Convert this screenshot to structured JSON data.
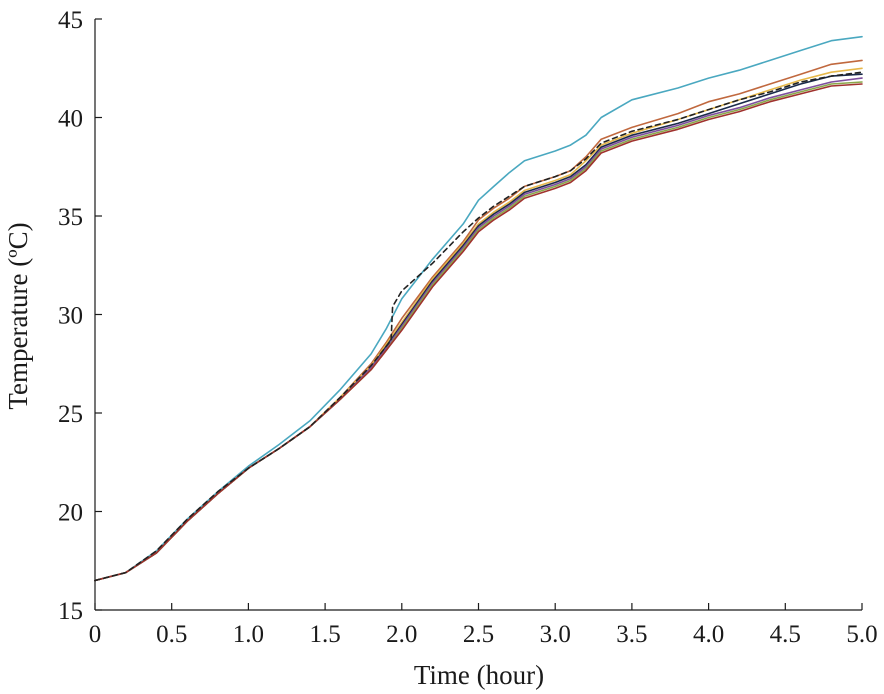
{
  "chart_data": {
    "type": "line",
    "title": "",
    "xlabel": "Time (hour)",
    "ylabel": "Temperature (ºC)",
    "xlim": [
      0,
      5
    ],
    "ylim": [
      15,
      45
    ],
    "xticks": [
      "0",
      "0.5",
      "1.0",
      "1.5",
      "2.0",
      "2.5",
      "3.0",
      "3.5",
      "4.0",
      "4.5",
      "5.0"
    ],
    "yticks": [
      "15",
      "20",
      "25",
      "30",
      "35",
      "40",
      "45"
    ],
    "grid": false,
    "legend": "none",
    "series": [
      {
        "color": "#4aa8c0",
        "style": "solid",
        "x": [
          0,
          0.2,
          0.4,
          0.6,
          0.8,
          1.0,
          1.2,
          1.4,
          1.6,
          1.8,
          1.9,
          2.0,
          2.2,
          2.4,
          2.5,
          2.6,
          2.7,
          2.8,
          3.0,
          3.1,
          3.2,
          3.3,
          3.5,
          3.8,
          4.0,
          4.2,
          4.4,
          4.6,
          4.8,
          5.0
        ],
        "y": [
          16.5,
          16.9,
          18.0,
          19.6,
          21.0,
          22.3,
          23.4,
          24.6,
          26.2,
          28.0,
          29.3,
          30.8,
          32.8,
          34.6,
          35.8,
          36.5,
          37.2,
          37.8,
          38.3,
          38.6,
          39.1,
          40.0,
          40.9,
          41.5,
          42.0,
          42.4,
          42.9,
          43.4,
          43.9,
          44.1
        ]
      },
      {
        "color": "#c0683e",
        "style": "solid",
        "x": [
          0,
          0.2,
          0.4,
          0.6,
          0.8,
          1.0,
          1.2,
          1.4,
          1.6,
          1.8,
          1.9,
          2.0,
          2.2,
          2.4,
          2.5,
          2.6,
          2.7,
          2.8,
          3.0,
          3.1,
          3.2,
          3.3,
          3.5,
          3.8,
          4.0,
          4.2,
          4.4,
          4.6,
          4.8,
          5.0
        ],
        "y": [
          16.5,
          16.9,
          17.9,
          19.5,
          20.9,
          22.2,
          23.2,
          24.3,
          25.8,
          27.5,
          28.6,
          29.8,
          31.9,
          33.7,
          34.8,
          35.4,
          35.9,
          36.5,
          37.0,
          37.3,
          38.0,
          38.9,
          39.5,
          40.2,
          40.8,
          41.2,
          41.7,
          42.2,
          42.7,
          42.9
        ]
      },
      {
        "color": "#e6b84a",
        "style": "solid",
        "x": [
          0,
          0.2,
          0.4,
          0.6,
          0.8,
          1.0,
          1.2,
          1.4,
          1.6,
          1.8,
          1.9,
          2.0,
          2.2,
          2.4,
          2.5,
          2.6,
          2.7,
          2.8,
          3.0,
          3.1,
          3.2,
          3.3,
          3.5,
          3.8,
          4.0,
          4.2,
          4.4,
          4.6,
          4.8,
          5.0
        ],
        "y": [
          16.5,
          16.9,
          17.9,
          19.5,
          20.9,
          22.2,
          23.2,
          24.3,
          25.8,
          27.4,
          28.5,
          29.6,
          31.8,
          33.6,
          34.6,
          35.2,
          35.7,
          36.3,
          36.8,
          37.1,
          37.8,
          38.6,
          39.2,
          39.9,
          40.4,
          40.9,
          41.4,
          41.9,
          42.3,
          42.5
        ]
      },
      {
        "color": "#1a2a4a",
        "style": "solid",
        "x": [
          0,
          0.2,
          0.4,
          0.6,
          0.8,
          1.0,
          1.2,
          1.4,
          1.6,
          1.8,
          1.9,
          2.0,
          2.2,
          2.4,
          2.5,
          2.6,
          2.7,
          2.8,
          3.0,
          3.1,
          3.2,
          3.3,
          3.5,
          3.8,
          4.0,
          4.2,
          4.4,
          4.6,
          4.8,
          5.0
        ],
        "y": [
          16.5,
          16.9,
          17.9,
          19.5,
          20.9,
          22.2,
          23.2,
          24.3,
          25.7,
          27.3,
          28.4,
          29.5,
          31.7,
          33.5,
          34.5,
          35.1,
          35.6,
          36.2,
          36.7,
          37.0,
          37.6,
          38.5,
          39.1,
          39.7,
          40.2,
          40.7,
          41.2,
          41.7,
          42.1,
          42.2
        ]
      },
      {
        "color": "#7e4f9e",
        "style": "solid",
        "x": [
          0,
          0.2,
          0.4,
          0.6,
          0.8,
          1.0,
          1.2,
          1.4,
          1.6,
          1.8,
          1.9,
          2.0,
          2.2,
          2.4,
          2.5,
          2.6,
          2.7,
          2.8,
          3.0,
          3.1,
          3.2,
          3.3,
          3.5,
          3.8,
          4.0,
          4.2,
          4.4,
          4.6,
          4.8,
          5.0
        ],
        "y": [
          16.5,
          16.9,
          17.9,
          19.5,
          20.9,
          22.2,
          23.2,
          24.3,
          25.7,
          27.3,
          28.3,
          29.4,
          31.6,
          33.4,
          34.4,
          35.0,
          35.5,
          36.1,
          36.6,
          36.9,
          37.5,
          38.4,
          39.0,
          39.6,
          40.1,
          40.5,
          41.0,
          41.4,
          41.8,
          42.0
        ]
      },
      {
        "color": "#8aa84a",
        "style": "solid",
        "x": [
          0,
          0.2,
          0.4,
          0.6,
          0.8,
          1.0,
          1.2,
          1.4,
          1.6,
          1.8,
          1.9,
          2.0,
          2.2,
          2.4,
          2.5,
          2.6,
          2.7,
          2.8,
          3.0,
          3.1,
          3.2,
          3.3,
          3.5,
          3.8,
          4.0,
          4.2,
          4.4,
          4.6,
          4.8,
          5.0
        ],
        "y": [
          16.5,
          16.9,
          17.9,
          19.5,
          20.9,
          22.2,
          23.2,
          24.3,
          25.7,
          27.2,
          28.2,
          29.3,
          31.5,
          33.3,
          34.3,
          34.9,
          35.4,
          36.0,
          36.5,
          36.8,
          37.4,
          38.3,
          38.9,
          39.5,
          40.0,
          40.4,
          40.9,
          41.3,
          41.7,
          41.8
        ]
      },
      {
        "color": "#a0322e",
        "style": "solid",
        "x": [
          0,
          0.2,
          0.4,
          0.6,
          0.8,
          1.0,
          1.2,
          1.4,
          1.6,
          1.8,
          1.9,
          2.0,
          2.2,
          2.4,
          2.5,
          2.6,
          2.7,
          2.8,
          3.0,
          3.1,
          3.2,
          3.3,
          3.5,
          3.8,
          4.0,
          4.2,
          4.4,
          4.6,
          4.8,
          5.0
        ],
        "y": [
          16.5,
          16.9,
          17.9,
          19.5,
          20.9,
          22.2,
          23.2,
          24.3,
          25.7,
          27.2,
          28.2,
          29.2,
          31.4,
          33.2,
          34.2,
          34.8,
          35.3,
          35.9,
          36.4,
          36.7,
          37.3,
          38.2,
          38.8,
          39.4,
          39.9,
          40.3,
          40.8,
          41.2,
          41.6,
          41.7
        ]
      },
      {
        "color": "#222222",
        "style": "dashed",
        "x": [
          0,
          0.2,
          0.4,
          0.6,
          0.8,
          1.0,
          1.2,
          1.4,
          1.6,
          1.8,
          1.93,
          1.94,
          2.0,
          2.2,
          2.4,
          2.5,
          2.6,
          2.7,
          2.8,
          3.0,
          3.1,
          3.2,
          3.3,
          3.5,
          3.8,
          4.0,
          4.2,
          4.4,
          4.6,
          4.8,
          5.0
        ],
        "y": [
          16.5,
          16.9,
          18.0,
          19.6,
          21.0,
          22.2,
          23.2,
          24.3,
          25.8,
          27.4,
          28.7,
          30.4,
          31.2,
          32.6,
          34.2,
          34.9,
          35.5,
          36.0,
          36.5,
          37.0,
          37.3,
          37.9,
          38.7,
          39.3,
          39.9,
          40.4,
          40.9,
          41.3,
          41.8,
          42.1,
          42.3
        ]
      }
    ]
  }
}
